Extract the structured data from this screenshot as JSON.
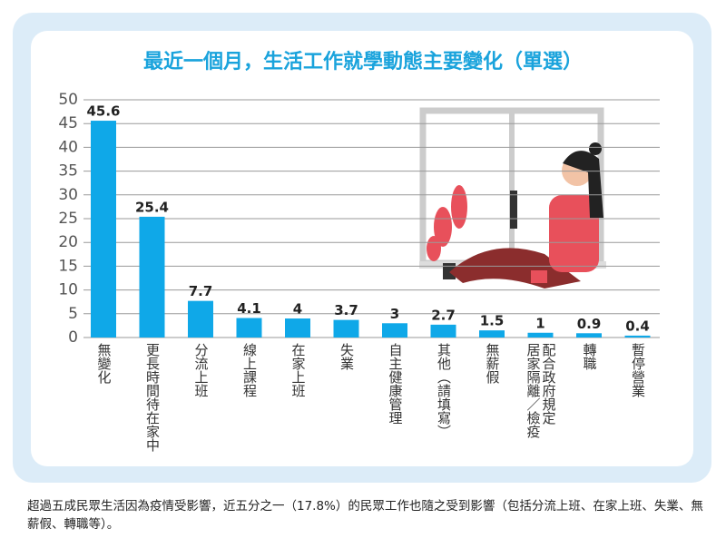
{
  "chart_data": {
    "type": "bar",
    "title": "最近一個月，生活工作就學動態主要變化（單選）",
    "categories": [
      "無變化",
      "更長時間待在家中",
      "分流上班",
      "線上課程",
      "在家上班",
      "失業",
      "自主健康管理",
      "其他（請填寫）",
      "無薪假",
      "配合政府規定\n居家隔離／檢疫",
      "轉職",
      "暫停營業"
    ],
    "values": [
      45.6,
      25.4,
      7.7,
      4.1,
      4,
      3.7,
      3,
      2.7,
      1.5,
      1,
      0.9,
      0.4
    ],
    "color": "#0fa8e8",
    "ylim": [
      0,
      50
    ],
    "yticks": [
      0,
      5,
      10,
      15,
      20,
      25,
      30,
      35,
      40,
      45,
      50
    ],
    "grid": true
  },
  "caption": "超過五成民眾生活因為疫情受影響，近五分之一（17.8%）的民眾工作也隨之受到影響（包括分流上班、在家上班、失業、無薪假、轉職等）。"
}
